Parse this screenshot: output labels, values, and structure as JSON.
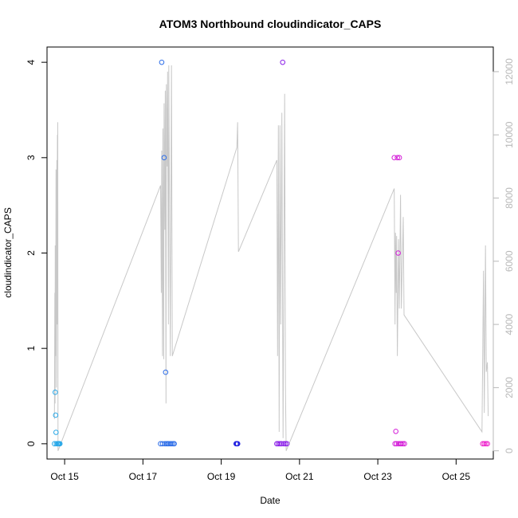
{
  "chart_data": {
    "type": "scatter",
    "title": "ATOM3 Northbound cloudindicator_CAPS",
    "xlabel": "Date",
    "ylabel": "cloudindicator_CAPS",
    "xlim": [
      14.55,
      25.95
    ],
    "ylim": [
      -0.16,
      4.16
    ],
    "y_ticks": [
      0,
      1,
      2,
      3,
      4
    ],
    "x_ticks": [
      {
        "value": 15,
        "label": "Oct 15"
      },
      {
        "value": 17,
        "label": "Oct 17"
      },
      {
        "value": 19,
        "label": "Oct 19"
      },
      {
        "value": 21,
        "label": "Oct 21"
      },
      {
        "value": 23,
        "label": "Oct 23"
      },
      {
        "value": 25,
        "label": "Oct 25"
      }
    ],
    "y2lim": [
      -260,
      12780
    ],
    "y2_ticks": [
      0,
      2000,
      4000,
      6000,
      8000,
      10000,
      12000
    ],
    "grid": false,
    "legend": "none",
    "line_color": "#c8c8c8",
    "points": [
      {
        "x": 14.74,
        "y": 0,
        "color": "#29a8e8"
      },
      {
        "x": 14.76,
        "y": 0.54,
        "color": "#29a8e8"
      },
      {
        "x": 14.77,
        "y": 0.3,
        "color": "#29a8e8"
      },
      {
        "x": 14.78,
        "y": 0.12,
        "color": "#29a8e8"
      },
      {
        "x": 14.79,
        "y": 0,
        "color": "#29a8e8"
      },
      {
        "x": 14.82,
        "y": 0,
        "color": "#29a8e8"
      },
      {
        "x": 14.84,
        "y": 0,
        "color": "#29a8e8"
      },
      {
        "x": 14.86,
        "y": 0,
        "color": "#29a8e8"
      },
      {
        "x": 14.88,
        "y": 0,
        "color": "#29a8e8"
      },
      {
        "x": 17.45,
        "y": 0,
        "color": "#2e6ee8"
      },
      {
        "x": 17.48,
        "y": 4,
        "color": "#2e6ee8"
      },
      {
        "x": 17.5,
        "y": 0,
        "color": "#2e6ee8"
      },
      {
        "x": 17.54,
        "y": 3,
        "color": "#2e6ee8"
      },
      {
        "x": 17.56,
        "y": 0,
        "color": "#2e6ee8"
      },
      {
        "x": 17.58,
        "y": 0.75,
        "color": "#2e6ee8"
      },
      {
        "x": 17.6,
        "y": 0,
        "color": "#2e6ee8"
      },
      {
        "x": 17.63,
        "y": 0,
        "color": "#2e6ee8"
      },
      {
        "x": 17.66,
        "y": 0,
        "color": "#2e6ee8"
      },
      {
        "x": 17.7,
        "y": 0,
        "color": "#2e6ee8"
      },
      {
        "x": 17.73,
        "y": 0,
        "color": "#2e6ee8"
      },
      {
        "x": 17.77,
        "y": 0,
        "color": "#2e6ee8"
      },
      {
        "x": 17.8,
        "y": 0,
        "color": "#2e6ee8"
      },
      {
        "x": 19.38,
        "y": 0,
        "color": "#2020e0"
      },
      {
        "x": 19.4,
        "y": 0,
        "color": "#2020e0"
      },
      {
        "x": 19.42,
        "y": 0,
        "color": "#2020e0"
      },
      {
        "x": 20.42,
        "y": 0,
        "color": "#8a1ee8"
      },
      {
        "x": 20.46,
        "y": 0,
        "color": "#8a1ee8"
      },
      {
        "x": 20.5,
        "y": 0,
        "color": "#8a1ee8"
      },
      {
        "x": 20.54,
        "y": 0,
        "color": "#8a1ee8"
      },
      {
        "x": 20.57,
        "y": 4,
        "color": "#8a1ee8"
      },
      {
        "x": 20.6,
        "y": 0,
        "color": "#8a1ee8"
      },
      {
        "x": 20.64,
        "y": 0,
        "color": "#8a1ee8"
      },
      {
        "x": 20.68,
        "y": 0,
        "color": "#8a1ee8"
      },
      {
        "x": 23.42,
        "y": 3,
        "color": "#d41ed8"
      },
      {
        "x": 23.44,
        "y": 0,
        "color": "#d41ed8"
      },
      {
        "x": 23.46,
        "y": 0.13,
        "color": "#d41ed8"
      },
      {
        "x": 23.48,
        "y": 0,
        "color": "#d41ed8"
      },
      {
        "x": 23.5,
        "y": 3,
        "color": "#d41ed8"
      },
      {
        "x": 23.52,
        "y": 2,
        "color": "#d41ed8"
      },
      {
        "x": 23.53,
        "y": 0,
        "color": "#d41ed8"
      },
      {
        "x": 23.55,
        "y": 3,
        "color": "#d41ed8"
      },
      {
        "x": 23.57,
        "y": 0,
        "color": "#d41ed8"
      },
      {
        "x": 23.6,
        "y": 0,
        "color": "#d41ed8"
      },
      {
        "x": 23.64,
        "y": 0,
        "color": "#d41ed8"
      },
      {
        "x": 23.68,
        "y": 0,
        "color": "#d41ed8"
      },
      {
        "x": 25.68,
        "y": 0,
        "color": "#ee22cc"
      },
      {
        "x": 25.72,
        "y": 0,
        "color": "#ee22cc"
      },
      {
        "x": 25.76,
        "y": 0,
        "color": "#ee22cc"
      },
      {
        "x": 25.8,
        "y": 0,
        "color": "#ee22cc"
      }
    ],
    "line_series": [
      [
        14.74,
        1000
      ],
      [
        14.75,
        5000
      ],
      [
        14.755,
        1500
      ],
      [
        14.76,
        6500
      ],
      [
        14.77,
        3000
      ],
      [
        14.78,
        8900
      ],
      [
        14.79,
        2000
      ],
      [
        14.8,
        9200
      ],
      [
        14.81,
        4000
      ],
      [
        14.815,
        10000
      ],
      [
        14.82,
        7000
      ],
      [
        14.825,
        10400
      ],
      [
        14.83,
        0
      ],
      [
        17.45,
        8400
      ],
      [
        17.47,
        5000
      ],
      [
        17.48,
        9500
      ],
      [
        17.5,
        3000
      ],
      [
        17.51,
        10200
      ],
      [
        17.53,
        2900
      ],
      [
        17.54,
        11000
      ],
      [
        17.56,
        7000
      ],
      [
        17.57,
        11400
      ],
      [
        17.59,
        1500
      ],
      [
        17.6,
        11600
      ],
      [
        17.62,
        9000
      ],
      [
        17.63,
        12000
      ],
      [
        17.65,
        4000
      ],
      [
        17.66,
        12200
      ],
      [
        17.7,
        3000
      ],
      [
        17.73,
        12200
      ],
      [
        17.75,
        3000
      ],
      [
        19.4,
        9600
      ],
      [
        19.42,
        10400
      ],
      [
        19.44,
        6300
      ],
      [
        20.42,
        9200
      ],
      [
        20.44,
        3000
      ],
      [
        20.46,
        10300
      ],
      [
        20.48,
        600
      ],
      [
        20.5,
        10300
      ],
      [
        20.52,
        4000
      ],
      [
        20.55,
        10700
      ],
      [
        20.58,
        400
      ],
      [
        20.62,
        11300
      ],
      [
        20.64,
        2000
      ],
      [
        20.66,
        0
      ],
      [
        23.42,
        8300
      ],
      [
        23.44,
        4000
      ],
      [
        23.45,
        6900
      ],
      [
        23.47,
        5000
      ],
      [
        23.48,
        6800
      ],
      [
        23.5,
        3000
      ],
      [
        23.53,
        6700
      ],
      [
        23.55,
        4500
      ],
      [
        23.58,
        8100
      ],
      [
        23.6,
        4500
      ],
      [
        23.65,
        7400
      ],
      [
        23.67,
        4300
      ],
      [
        25.66,
        600
      ],
      [
        25.7,
        5700
      ],
      [
        25.72,
        1200
      ],
      [
        25.75,
        6500
      ],
      [
        25.77,
        2500
      ],
      [
        25.8,
        2800
      ],
      [
        25.82,
        1100
      ]
    ]
  }
}
